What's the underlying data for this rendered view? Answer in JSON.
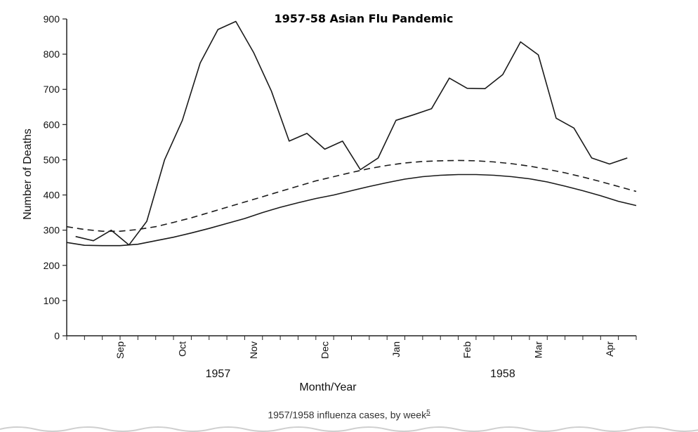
{
  "chart_data": {
    "type": "line",
    "title": "1957-58 Asian Flu Pandemic",
    "xlabel": "Month/Year",
    "ylabel": "Number of Deaths",
    "ylim": [
      0,
      900
    ],
    "yticks": [
      0,
      100,
      200,
      300,
      400,
      500,
      600,
      700,
      800,
      900
    ],
    "grid": false,
    "legend": "none",
    "x_range_weeks": [
      0,
      32
    ],
    "months": [
      {
        "label": "Sep",
        "week": 3
      },
      {
        "label": "Oct",
        "week": 6.5
      },
      {
        "label": "Nov",
        "week": 10.5
      },
      {
        "label": "Dec",
        "week": 14.5
      },
      {
        "label": "Jan",
        "week": 18.5
      },
      {
        "label": "Feb",
        "week": 22.5
      },
      {
        "label": "Mar",
        "week": 26.5
      },
      {
        "label": "Apr",
        "week": 30.5
      }
    ],
    "years": [
      {
        "label": "1957",
        "week": 8.5
      },
      {
        "label": "1958",
        "week": 24.5
      }
    ],
    "series": [
      {
        "style": "solid",
        "x": [
          0.5,
          1.5,
          2.5,
          3.5,
          4.5,
          5.5,
          6.5,
          7.5,
          8.5,
          9.5,
          10.5,
          11.5,
          12.5,
          13.5,
          14.5,
          15.5,
          16.5,
          17.5,
          18.5,
          19.5,
          20.5,
          21.5,
          22.5,
          23.5,
          24.5,
          25.5,
          26.5,
          27.5,
          28.5,
          29.5,
          30.5,
          31.5
        ],
        "values": [
          282,
          270,
          300,
          258,
          325,
          500,
          612,
          775,
          870,
          893,
          805,
          695,
          553,
          575,
          530,
          553,
          472,
          505,
          612,
          628,
          645,
          732,
          703,
          702,
          742,
          835,
          798,
          618,
          590,
          505,
          488,
          505
        ]
      },
      {
        "style": "dashed",
        "x": [
          0,
          1,
          2,
          3,
          4,
          5,
          6,
          7,
          8,
          9,
          10,
          11,
          12,
          13,
          14,
          15,
          16,
          17,
          18,
          19,
          20,
          21,
          22,
          23,
          24,
          25,
          26,
          27,
          28,
          29,
          30,
          31,
          32
        ],
        "values": [
          310,
          302,
          297,
          297,
          302,
          310,
          322,
          335,
          350,
          365,
          380,
          395,
          410,
          425,
          440,
          452,
          464,
          475,
          484,
          491,
          495,
          497,
          498,
          497,
          494,
          489,
          482,
          473,
          463,
          451,
          438,
          424,
          410
        ]
      },
      {
        "style": "solid",
        "x": [
          0,
          1,
          2,
          3,
          4,
          5,
          6,
          7,
          8,
          9,
          10,
          11,
          12,
          13,
          14,
          15,
          16,
          17,
          18,
          19,
          20,
          21,
          22,
          23,
          24,
          25,
          26,
          27,
          28,
          29,
          30,
          31,
          32
        ],
        "values": [
          265,
          257,
          256,
          256,
          260,
          270,
          280,
          292,
          305,
          319,
          333,
          350,
          365,
          378,
          390,
          400,
          412,
          424,
          435,
          445,
          452,
          456,
          458,
          458,
          456,
          452,
          446,
          437,
          425,
          412,
          398,
          382,
          370
        ]
      }
    ]
  },
  "caption": {
    "text": "1957/1958 influenza cases, by week",
    "ref": "5"
  }
}
